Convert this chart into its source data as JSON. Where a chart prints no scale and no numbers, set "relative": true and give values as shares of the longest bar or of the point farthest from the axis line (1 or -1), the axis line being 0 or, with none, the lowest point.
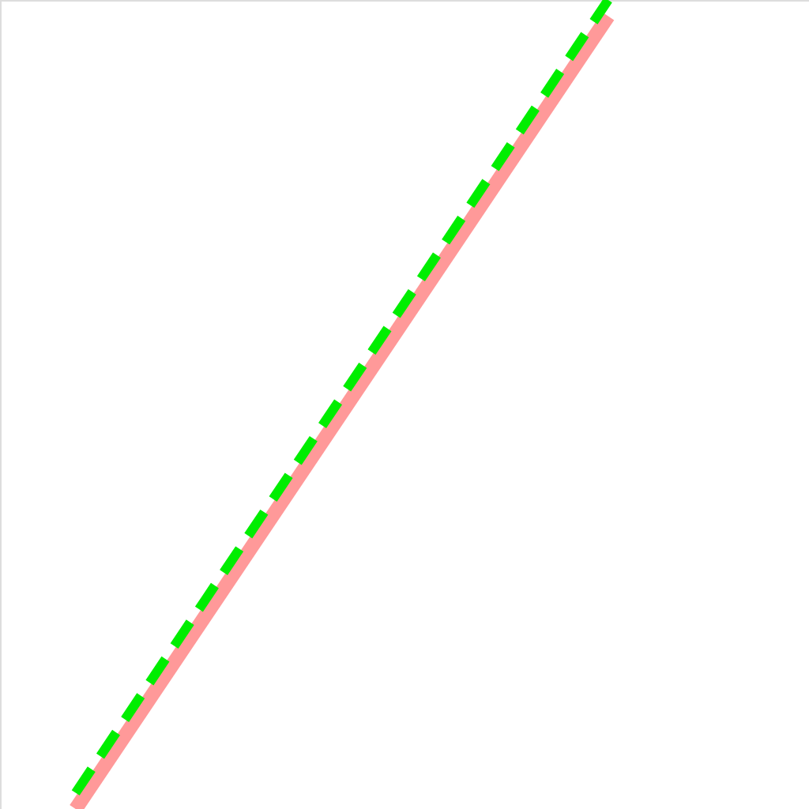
{
  "chart_data": {
    "type": "line",
    "relative": true,
    "categories": [
      null,
      null
    ],
    "series": [
      {
        "color": "#ff9999",
        "values": [
          0,
          0.98
        ],
        "line_style": "solid"
      },
      {
        "color": "#00ee00",
        "values": [
          0.02,
          1
        ],
        "line_style": "dashed"
      }
    ]
  }
}
